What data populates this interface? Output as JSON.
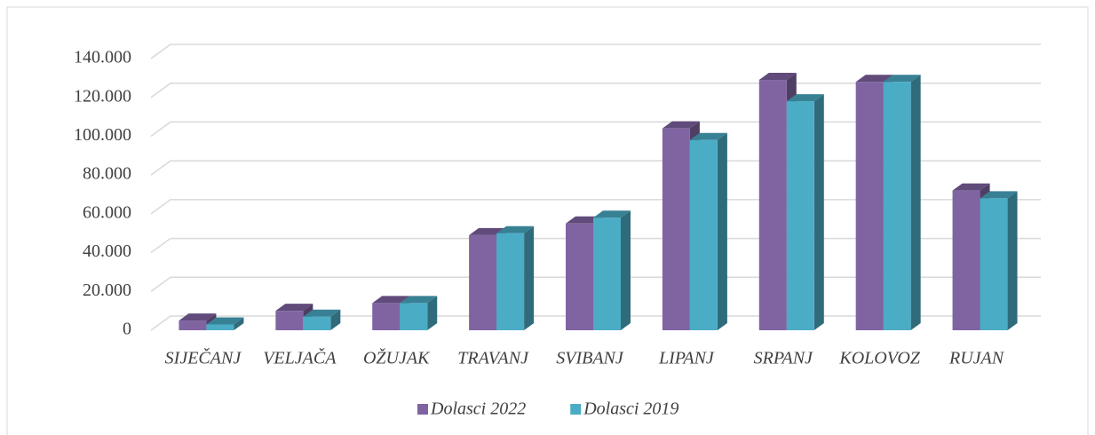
{
  "chart_data": {
    "type": "bar3d",
    "categories": [
      "SIJEČANJ",
      "VELJAČA",
      "OŽUJAK",
      "TRAVANJ",
      "SVIBANJ",
      "LIPANJ",
      "SRPANJ",
      "KOLOVOZ",
      "RUJAN"
    ],
    "series": [
      {
        "name": "Dolasci 2022",
        "color": "#8064a2",
        "values": [
          5000,
          10000,
          14000,
          49000,
          55000,
          104000,
          129000,
          128000,
          72000
        ]
      },
      {
        "name": "Dolasci 2019",
        "color": "#4bacc6",
        "values": [
          3000,
          7000,
          14000,
          50000,
          58000,
          98000,
          118000,
          128000,
          68000
        ]
      }
    ],
    "ylim": [
      0,
      140000
    ],
    "yticks": [
      0,
      {
        "value": 20000,
        "label": "20.000"
      },
      {
        "value": 40000,
        "label": "40.000"
      },
      {
        "value": 60000,
        "label": "60.000"
      },
      {
        "value": 80000,
        "label": "80.000"
      },
      {
        "value": 100000,
        "label": "100.000"
      },
      {
        "value": 120000,
        "label": "120.000"
      },
      {
        "value": 140000,
        "label": "140.000"
      }
    ],
    "grid": true,
    "legend": "bottom"
  }
}
